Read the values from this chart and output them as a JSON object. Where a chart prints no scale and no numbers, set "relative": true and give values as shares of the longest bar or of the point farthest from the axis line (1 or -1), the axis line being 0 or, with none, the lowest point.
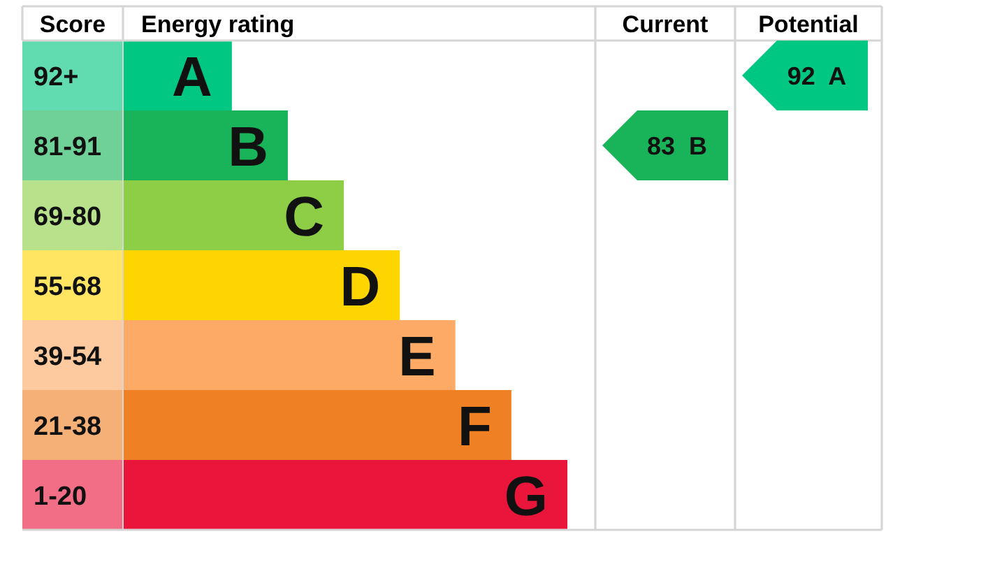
{
  "chart_data": [
    {
      "type": "bar",
      "orientation": "horizontal",
      "relative": true,
      "xlabel": "Energy rating",
      "ylabel": "Score",
      "categories": [
        "92+",
        "81-91",
        "69-80",
        "55-68",
        "39-54",
        "21-38",
        "1-20"
      ],
      "values": [
        0.245,
        0.371,
        0.497,
        0.623,
        0.748,
        0.874,
        1
      ],
      "colors": [
        "#00c781",
        "#19b459",
        "#8dce46",
        "#ffd500",
        "#fcaa65",
        "#ef8023",
        "#e9153b"
      ],
      "annotations": [
        {
          "text": "A",
          "x": 0.245,
          "y": "92+"
        },
        {
          "text": "B",
          "x": 0.371,
          "y": "81-91"
        },
        {
          "text": "C",
          "x": 0.497,
          "y": "69-80"
        },
        {
          "text": "D",
          "x": 0.623,
          "y": "55-68"
        },
        {
          "text": "E",
          "x": 0.748,
          "y": "39-54"
        },
        {
          "text": "F",
          "x": 0.874,
          "y": "21-38"
        },
        {
          "text": "G",
          "x": 1,
          "y": "1-20"
        }
      ]
    },
    {
      "type": "heatmap",
      "tick_labels": "x",
      "categories": [
        "Current",
        "Potential"
      ],
      "y_categories": [
        "92+",
        "81-91",
        "69-80",
        "55-68",
        "39-54",
        "21-38",
        "1-20"
      ],
      "cells": [
        [
          null,
          92
        ],
        [
          83,
          null
        ],
        [
          null,
          null
        ],
        [
          null,
          null
        ],
        [
          null,
          null
        ],
        [
          null,
          null
        ],
        [
          null,
          null
        ]
      ],
      "cell_labels": [
        [
          null,
          "92 A"
        ],
        [
          "83 B",
          null
        ],
        [
          null,
          null
        ],
        [
          null,
          null
        ],
        [
          null,
          null
        ],
        [
          null,
          null
        ],
        [
          null,
          null
        ]
      ]
    }
  ]
}
